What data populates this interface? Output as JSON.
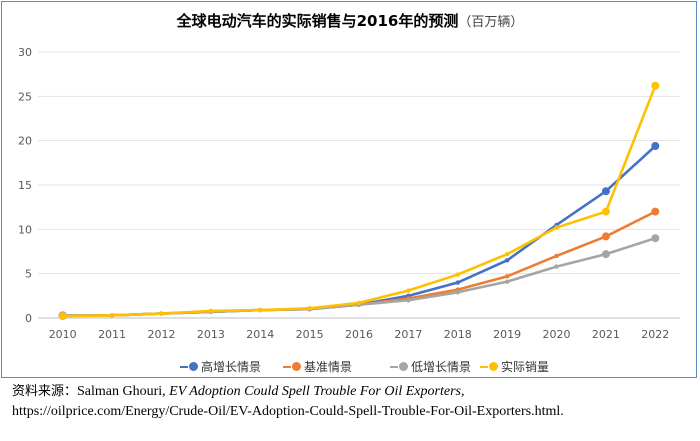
{
  "chart_data": {
    "type": "line",
    "title": "全球电动汽车的实际销售与2016年的预测",
    "title_unit": "（百万辆）",
    "categories": [
      "2010",
      "2011",
      "2012",
      "2013",
      "2014",
      "2015",
      "2016",
      "2017",
      "2018",
      "2019",
      "2020",
      "2021",
      "2022"
    ],
    "ylim": [
      0,
      30
    ],
    "yticks": [
      0,
      5,
      10,
      15,
      20,
      25,
      30
    ],
    "grid": true,
    "series": [
      {
        "name": "高增长情景",
        "color": "#4472c4",
        "values": [
          0.3,
          0.3,
          0.5,
          0.7,
          0.9,
          1.0,
          1.5,
          2.5,
          4.0,
          6.5,
          10.5,
          14.3,
          19.4
        ],
        "start_index": 0
      },
      {
        "name": "基准情景",
        "color": "#ed7d31",
        "values": [
          0.3,
          0.3,
          0.5,
          0.7,
          0.9,
          1.0,
          1.5,
          2.2,
          3.2,
          4.7,
          7.0,
          9.2,
          12.0
        ],
        "start_index": 0
      },
      {
        "name": "低增长情景",
        "color": "#a5a5a5",
        "values": [
          0.3,
          0.3,
          0.5,
          0.7,
          0.9,
          1.0,
          1.5,
          2.0,
          2.9,
          4.1,
          5.8,
          7.2,
          9.0
        ],
        "start_index": 0
      },
      {
        "name": "实际销量",
        "color": "#ffc000",
        "values": [
          0.2,
          0.3,
          0.5,
          0.8,
          0.9,
          1.1,
          1.7,
          3.1,
          4.9,
          7.2,
          10.2,
          12.0,
          26.2
        ],
        "start_index": 0
      }
    ],
    "legend_position": "bottom"
  },
  "source": {
    "label": "资料来源：",
    "author": "Salman Ghouri,",
    "article": "EV Adoption Could Spell Trouble For Oil Exporters,",
    "url": "https://oilprice.com/Energy/Crude-Oil/EV-Adoption-Could-Spell-Trouble-For-Oil-Exporters.html."
  }
}
